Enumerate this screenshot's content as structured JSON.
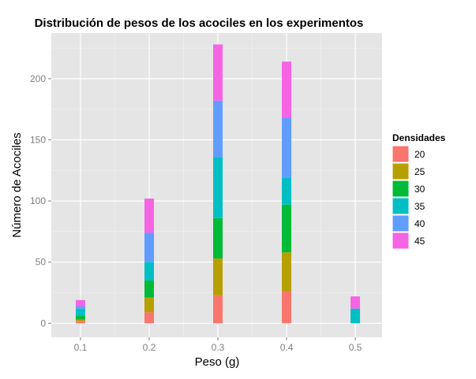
{
  "chart_data": {
    "type": "bar",
    "stacked": true,
    "title": "Distribución de pesos de los acociles en los experimentos",
    "xlabel": "Peso (g)",
    "ylabel": "Número de Acociles",
    "xlim": [
      0.0575,
      0.539
    ],
    "ylim": [
      -11.4,
      237.3
    ],
    "x_ticks": [
      "0.1",
      "0.2",
      "0.3",
      "0.4",
      "0.5"
    ],
    "y_ticks": [
      "0",
      "50",
      "100",
      "150",
      "200"
    ],
    "grid": true,
    "categories": [
      0.1,
      0.2,
      0.3,
      0.4,
      0.5
    ],
    "legend": {
      "title": "Densidades",
      "position": "right"
    },
    "series": [
      {
        "name": "20",
        "color": "#F8766D",
        "values": [
          2,
          9,
          23,
          26,
          0
        ]
      },
      {
        "name": "25",
        "color": "#B79F00",
        "values": [
          1,
          12,
          30,
          32,
          0
        ]
      },
      {
        "name": "30",
        "color": "#00BA38",
        "values": [
          3,
          14,
          33,
          39,
          0
        ]
      },
      {
        "name": "35",
        "color": "#00BFC4",
        "values": [
          6,
          15,
          50,
          22,
          12
        ]
      },
      {
        "name": "40",
        "color": "#619CFF",
        "values": [
          2,
          24,
          46,
          49,
          0
        ]
      },
      {
        "name": "45",
        "color": "#F564E3",
        "values": [
          5,
          28,
          46,
          46,
          10
        ]
      }
    ]
  }
}
